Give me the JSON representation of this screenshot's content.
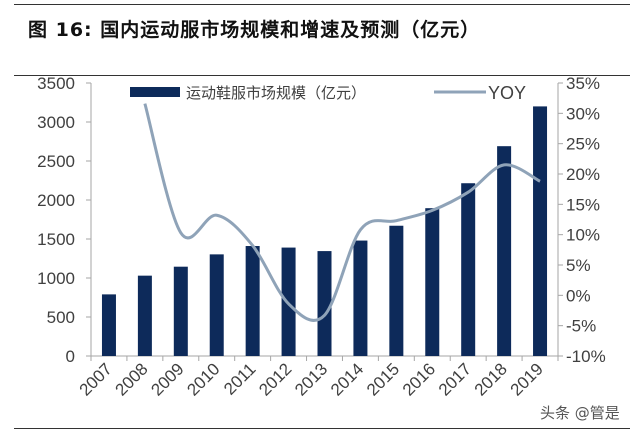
{
  "header": {
    "title": "图 16:  国内运动服市场规模和增速及预测（亿元）"
  },
  "watermark": "头条 @管是",
  "chart_data": {
    "type": "bar+line",
    "title": "",
    "categories": [
      "2007",
      "2008",
      "2009",
      "2010",
      "2011",
      "2012",
      "2013",
      "2014",
      "2015",
      "2016",
      "2017",
      "2018",
      "2019"
    ],
    "series": [
      {
        "name": "运动鞋服市场规模（亿元）",
        "type": "bar",
        "axis": "left",
        "color": "#0d2a5a",
        "values": [
          790,
          1030,
          1145,
          1303,
          1410,
          1390,
          1345,
          1480,
          1670,
          1895,
          2215,
          2690,
          3200
        ]
      },
      {
        "name": "YOY",
        "type": "line",
        "axis": "right",
        "color": "#8fa3b8",
        "values": [
          null,
          31.6,
          10.3,
          13.2,
          8.2,
          -1.4,
          -3.3,
          10.8,
          12.3,
          14.0,
          17.0,
          21.5,
          18.8
        ]
      }
    ],
    "y_left": {
      "range": [
        0,
        3500
      ],
      "ticks": [
        "0",
        "500",
        "1000",
        "1500",
        "2000",
        "2500",
        "3000",
        "3500"
      ]
    },
    "y_right": {
      "range": [
        -10,
        35
      ],
      "ticks": [
        "-10%",
        "-5%",
        "0%",
        "5%",
        "10%",
        "15%",
        "20%",
        "25%",
        "30%",
        "35%"
      ]
    },
    "grid": false,
    "legend": "top"
  }
}
